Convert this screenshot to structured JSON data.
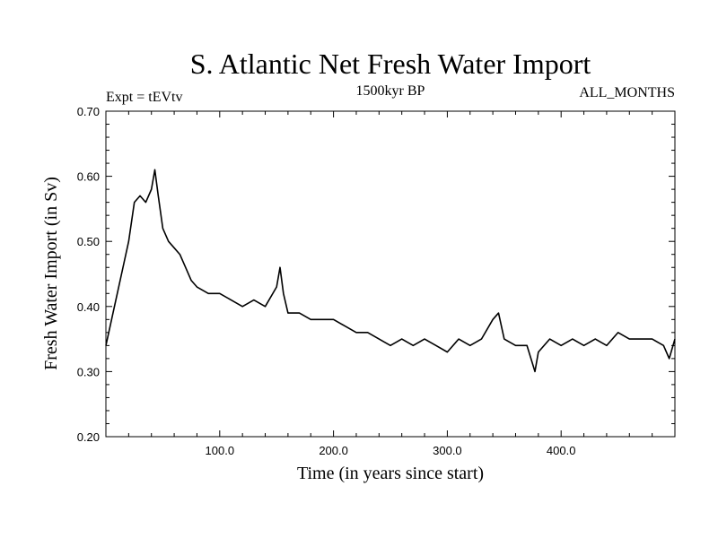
{
  "chart_data": {
    "type": "line",
    "title": "S. Atlantic Net Fresh Water Import",
    "subtitle_left": "Expt = tEVtv",
    "subtitle_center": "1500kyr BP",
    "subtitle_right": "ALL_MONTHS",
    "xlabel": "Time (in years since start)",
    "ylabel": "Fresh Water Import (in Sv)",
    "xlim": [
      0,
      500
    ],
    "ylim": [
      0.2,
      0.7
    ],
    "xticks": [
      100,
      200,
      300,
      400
    ],
    "xtick_labels": [
      "100.0",
      "200.0",
      "300.0",
      "400.0"
    ],
    "yticks": [
      0.2,
      0.3,
      0.4,
      0.5,
      0.6,
      0.7
    ],
    "ytick_labels": [
      "0.20",
      "0.30",
      "0.40",
      "0.50",
      "0.60",
      "0.70"
    ],
    "series": [
      {
        "name": "S. Atlantic Net Fresh Water Import",
        "x": [
          0,
          5,
          10,
          15,
          20,
          25,
          30,
          35,
          40,
          43,
          46,
          50,
          55,
          60,
          65,
          70,
          75,
          80,
          90,
          100,
          110,
          120,
          130,
          140,
          150,
          153,
          156,
          160,
          170,
          180,
          190,
          200,
          210,
          220,
          230,
          240,
          250,
          260,
          270,
          280,
          290,
          300,
          310,
          320,
          330,
          340,
          345,
          350,
          360,
          370,
          377,
          380,
          390,
          400,
          410,
          420,
          430,
          440,
          450,
          460,
          470,
          480,
          490,
          495,
          500
        ],
        "values": [
          0.34,
          0.38,
          0.42,
          0.46,
          0.5,
          0.56,
          0.57,
          0.56,
          0.58,
          0.61,
          0.57,
          0.52,
          0.5,
          0.49,
          0.48,
          0.46,
          0.44,
          0.43,
          0.42,
          0.42,
          0.41,
          0.4,
          0.41,
          0.4,
          0.43,
          0.46,
          0.42,
          0.39,
          0.39,
          0.38,
          0.38,
          0.38,
          0.37,
          0.36,
          0.36,
          0.35,
          0.34,
          0.35,
          0.34,
          0.35,
          0.34,
          0.33,
          0.35,
          0.34,
          0.35,
          0.38,
          0.39,
          0.35,
          0.34,
          0.34,
          0.3,
          0.33,
          0.35,
          0.34,
          0.35,
          0.34,
          0.35,
          0.34,
          0.36,
          0.35,
          0.35,
          0.35,
          0.34,
          0.32,
          0.35
        ]
      }
    ]
  }
}
